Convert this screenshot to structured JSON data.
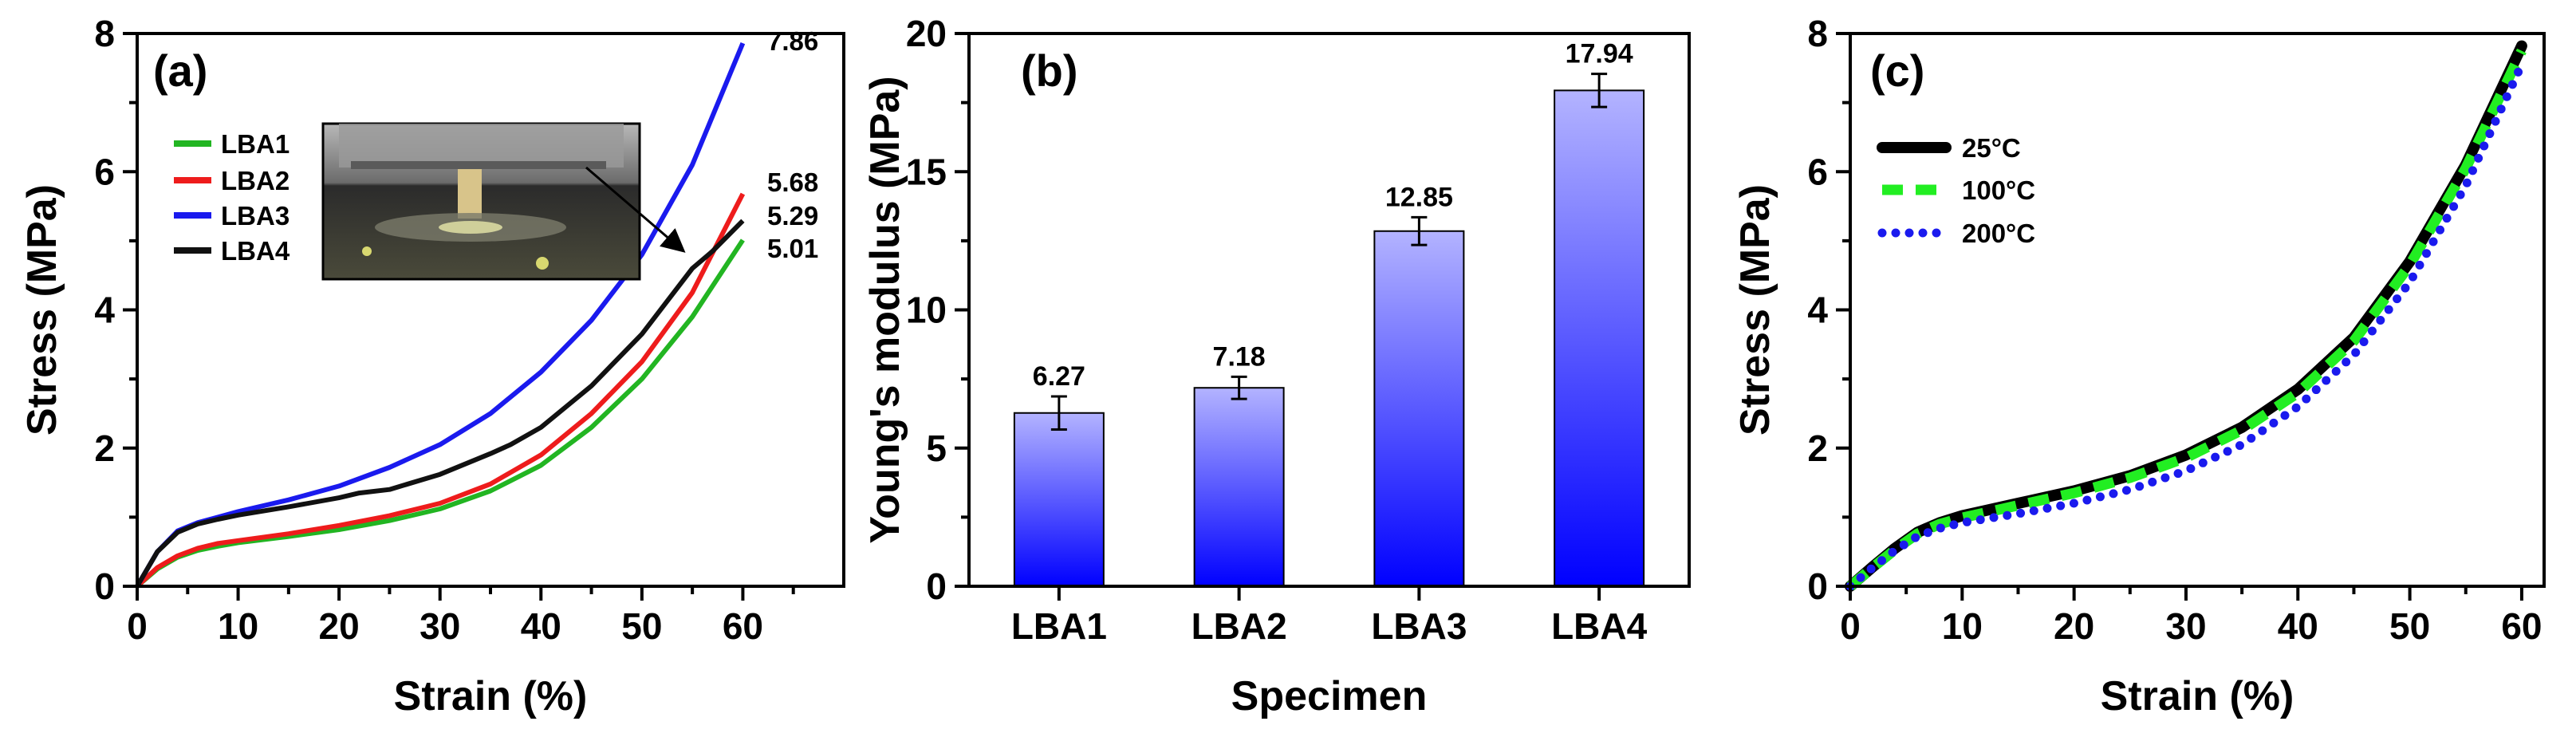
{
  "chart_data": [
    {
      "panel": "(a)",
      "type": "line",
      "xlabel": "Strain (%)",
      "ylabel": "Stress (MPa)",
      "xlim": [
        0,
        70
      ],
      "ylim": [
        0,
        8
      ],
      "xticks": [
        0,
        10,
        20,
        30,
        40,
        50,
        60
      ],
      "yticks": [
        0,
        2,
        4,
        6,
        8
      ],
      "legend_position": "left",
      "inset": "photo of compression test setup",
      "series": [
        {
          "name": "LBA1",
          "color": "#22b522",
          "end_label": "5.01",
          "x": [
            0,
            2,
            4,
            6,
            8,
            10,
            15,
            20,
            25,
            30,
            35,
            40,
            45,
            50,
            55,
            60
          ],
          "y": [
            0,
            0.25,
            0.42,
            0.52,
            0.58,
            0.63,
            0.72,
            0.82,
            0.95,
            1.12,
            1.38,
            1.75,
            2.3,
            3.0,
            3.9,
            5.01
          ]
        },
        {
          "name": "LBA2",
          "color": "#ee1c1c",
          "end_label": "5.68",
          "x": [
            0,
            2,
            4,
            6,
            8,
            10,
            15,
            20,
            25,
            30,
            35,
            40,
            45,
            50,
            55,
            60
          ],
          "y": [
            0,
            0.27,
            0.44,
            0.55,
            0.62,
            0.66,
            0.76,
            0.88,
            1.02,
            1.2,
            1.48,
            1.9,
            2.5,
            3.25,
            4.25,
            5.68
          ]
        },
        {
          "name": "LBA3",
          "color": "#1a1aee",
          "end_label": "7.86",
          "x": [
            0,
            2,
            4,
            6,
            8,
            10,
            15,
            20,
            25,
            30,
            35,
            40,
            45,
            50,
            55,
            60
          ],
          "y": [
            0,
            0.5,
            0.8,
            0.92,
            1.0,
            1.08,
            1.25,
            1.45,
            1.72,
            2.05,
            2.5,
            3.1,
            3.85,
            4.8,
            6.1,
            7.86
          ]
        },
        {
          "name": "LBA4",
          "color": "#111111",
          "end_label": "5.29",
          "x": [
            0,
            2,
            4,
            6,
            8,
            10,
            15,
            20,
            22,
            25,
            30,
            35,
            37,
            40,
            45,
            50,
            55,
            57,
            60
          ],
          "y": [
            0,
            0.5,
            0.78,
            0.9,
            0.97,
            1.03,
            1.15,
            1.28,
            1.35,
            1.4,
            1.62,
            1.92,
            2.05,
            2.3,
            2.9,
            3.65,
            4.6,
            4.85,
            5.29
          ]
        }
      ]
    },
    {
      "panel": "(b)",
      "type": "bar",
      "xlabel": "Specimen",
      "ylabel": "Young's modulus (MPa)",
      "ylim": [
        0,
        20
      ],
      "yticks": [
        0,
        5,
        10,
        15,
        20
      ],
      "categories": [
        "LBA1",
        "LBA2",
        "LBA3",
        "LBA4"
      ],
      "values": [
        6.27,
        7.18,
        12.85,
        17.94
      ],
      "value_labels": [
        "6.27",
        "7.18",
        "12.85",
        "17.94"
      ],
      "errors": [
        0.6,
        0.4,
        0.5,
        0.6
      ],
      "bar_gradient": [
        "#b3b3ff",
        "#0000ff"
      ]
    },
    {
      "panel": "(c)",
      "type": "line",
      "xlabel": "Strain (%)",
      "ylabel": "Stress (MPa)",
      "xlim": [
        0,
        62
      ],
      "ylim": [
        0,
        8
      ],
      "xticks": [
        0,
        10,
        20,
        30,
        40,
        50,
        60
      ],
      "yticks": [
        0,
        2,
        4,
        6,
        8
      ],
      "legend_position": "top-left",
      "series": [
        {
          "name": "25°C",
          "color": "#000000",
          "style": "solid",
          "x": [
            0,
            2,
            4,
            6,
            8,
            10,
            15,
            20,
            25,
            30,
            35,
            40,
            45,
            50,
            55,
            60
          ],
          "y": [
            0,
            0.28,
            0.55,
            0.78,
            0.92,
            1.02,
            1.2,
            1.38,
            1.6,
            1.9,
            2.3,
            2.85,
            3.6,
            4.7,
            6.1,
            7.82
          ]
        },
        {
          "name": "100°C",
          "color": "#22ee22",
          "style": "dashed",
          "x": [
            0,
            2,
            4,
            6,
            8,
            10,
            15,
            20,
            25,
            30,
            35,
            40,
            45,
            50,
            55,
            60
          ],
          "y": [
            0,
            0.27,
            0.53,
            0.76,
            0.9,
            0.99,
            1.17,
            1.35,
            1.57,
            1.86,
            2.26,
            2.8,
            3.55,
            4.65,
            6.05,
            7.75
          ]
        },
        {
          "name": "200°C",
          "color": "#1a1aee",
          "style": "dotted",
          "x": [
            0,
            2,
            4,
            6,
            8,
            10,
            15,
            20,
            25,
            30,
            35,
            40,
            45,
            50,
            55,
            60
          ],
          "y": [
            0,
            0.27,
            0.52,
            0.72,
            0.84,
            0.92,
            1.05,
            1.2,
            1.4,
            1.67,
            2.05,
            2.6,
            3.35,
            4.4,
            5.8,
            7.55
          ]
        }
      ]
    }
  ]
}
